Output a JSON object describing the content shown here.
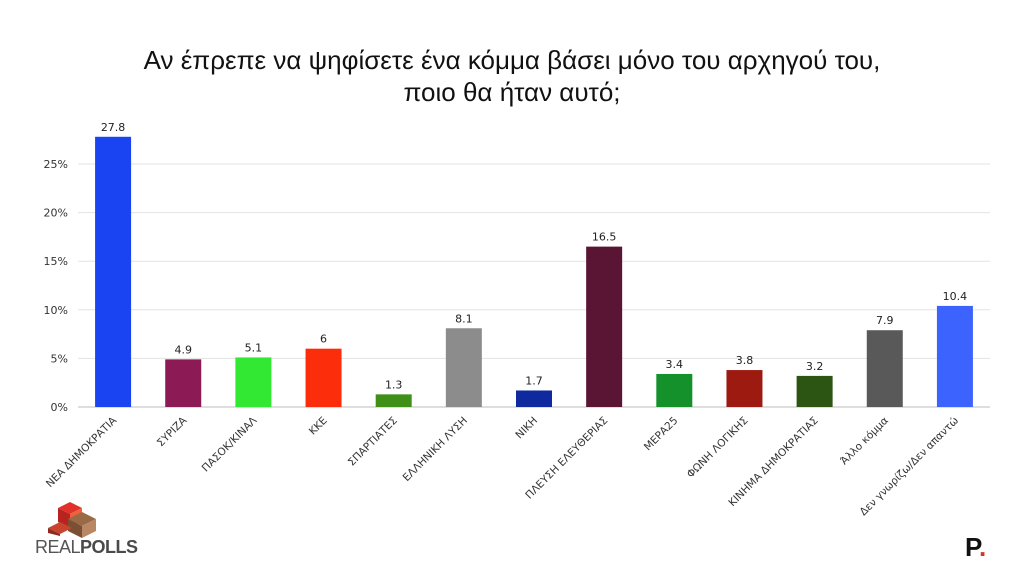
{
  "title_lines": [
    "Αν έπρεπε να ψηφίσετε ένα κόμμα βάσει μόνο του αρχηγού του,",
    "ποιο θα ήταν αυτό;"
  ],
  "branding": {
    "left_logo": "REALPOLLS",
    "left_logo_parts": [
      "REAL",
      "POLLS"
    ],
    "right_logo": "P",
    "right_logo_dot": "."
  },
  "chart_data": {
    "type": "bar",
    "title": "Αν έπρεπε να ψηφίσετε ένα κόμμα βάσει μόνο του αρχηγού του, ποιο θα ήταν αυτό;",
    "categories": [
      "ΝΕΑ ΔΗΜΟΚΡΑΤΙΑ",
      "ΣΥΡΙΖΑ",
      "ΠΑΣΟΚ/ΚΙΝΑΛ",
      "ΚΚΕ",
      "ΣΠΑΡΤΙΑΤΕΣ",
      "ΕΛΛΗΝΙΚΗ ΛΥΣΗ",
      "ΝΙΚΗ",
      "ΠΛΕΥΣΗ ΕΛΕΥΘΕΡΙΑΣ",
      "ΜΕΡΑ25",
      "ΦΩΝΗ ΛΟΓΙΚΗΣ",
      "ΚΙΝΗΜΑ ΔΗΜΟΚΡΑΤΙΑΣ",
      "Άλλο κόμμα",
      "Δεν γνωρίζω/Δεν απαντώ"
    ],
    "values": [
      27.8,
      4.9,
      5.1,
      6,
      1.3,
      8.1,
      1.7,
      16.5,
      3.4,
      3.8,
      3.2,
      7.9,
      10.4
    ],
    "value_labels": [
      "27.8",
      "4.9",
      "5.1",
      "6",
      "1.3",
      "8.1",
      "1.7",
      "16.5",
      "3.4",
      "3.8",
      "3.2",
      "7.9",
      "10.4"
    ],
    "colors": [
      "#1a44f2",
      "#8b1a55",
      "#33e832",
      "#fb2d0a",
      "#3f8f18",
      "#8c8c8c",
      "#0f2a9e",
      "#5a1434",
      "#14912a",
      "#9c1a10",
      "#2c5412",
      "#595959",
      "#3d63ff"
    ],
    "yticks": [
      0,
      5,
      10,
      15,
      20,
      25
    ],
    "ytick_labels": [
      "0%",
      "5%",
      "10%",
      "15%",
      "20%",
      "25%"
    ],
    "ylim": [
      0,
      28
    ],
    "grid": true,
    "xlabel": "",
    "ylabel": ""
  }
}
